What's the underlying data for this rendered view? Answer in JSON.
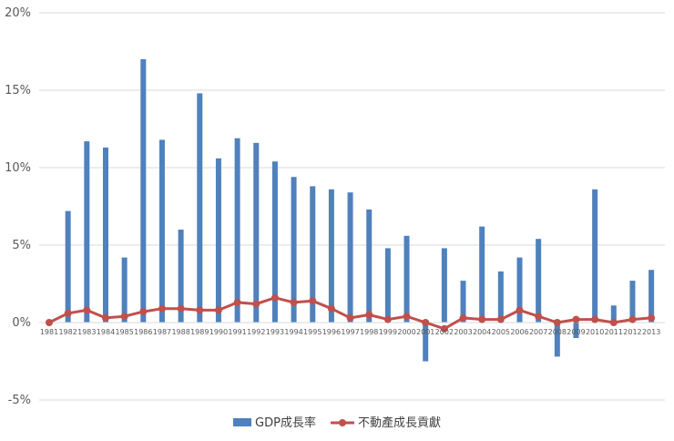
{
  "chart_data": {
    "type": "bar",
    "title": "",
    "xlabel": "",
    "ylabel": "",
    "ylim": [
      -5,
      20
    ],
    "yticks": [
      -5,
      0,
      5,
      10,
      15,
      20
    ],
    "ytick_labels": [
      "-5%",
      "0%",
      "5%",
      "10%",
      "15%",
      "20%"
    ],
    "grid": true,
    "legend_position": "bottom",
    "categories": [
      "1981",
      "1982",
      "1983",
      "1984",
      "1985",
      "1986",
      "1987",
      "1988",
      "1989",
      "1990",
      "1991",
      "1992",
      "1993",
      "1994",
      "1995",
      "1996",
      "1997",
      "1998",
      "1999",
      "2000",
      "2001",
      "2002",
      "2003",
      "2004",
      "2005",
      "2006",
      "2007",
      "2008",
      "2009",
      "2010",
      "2011",
      "2012",
      "2013"
    ],
    "series": [
      {
        "name": "GDP成長率",
        "type": "bar",
        "color": "#4F81BD",
        "values": [
          0,
          7.2,
          11.7,
          11.3,
          4.2,
          17.0,
          11.8,
          6.0,
          14.8,
          10.6,
          11.9,
          11.6,
          10.4,
          9.4,
          8.8,
          8.6,
          8.4,
          7.3,
          4.8,
          5.6,
          -2.5,
          4.8,
          2.7,
          6.2,
          3.3,
          4.2,
          5.4,
          -2.2,
          -1.0,
          8.6,
          1.1,
          2.7,
          3.4
        ]
      },
      {
        "name": "不動產成長貢獻",
        "type": "line",
        "color": "#C0504D",
        "values": [
          0,
          0.6,
          0.8,
          0.3,
          0.4,
          0.7,
          0.9,
          0.9,
          0.8,
          0.8,
          1.3,
          1.2,
          1.6,
          1.3,
          1.4,
          0.9,
          0.3,
          0.5,
          0.2,
          0.4,
          0.0,
          -0.4,
          0.3,
          0.2,
          0.2,
          0.8,
          0.4,
          0.0,
          0.2,
          0.2,
          0.0,
          0.2,
          0.3
        ]
      }
    ]
  }
}
